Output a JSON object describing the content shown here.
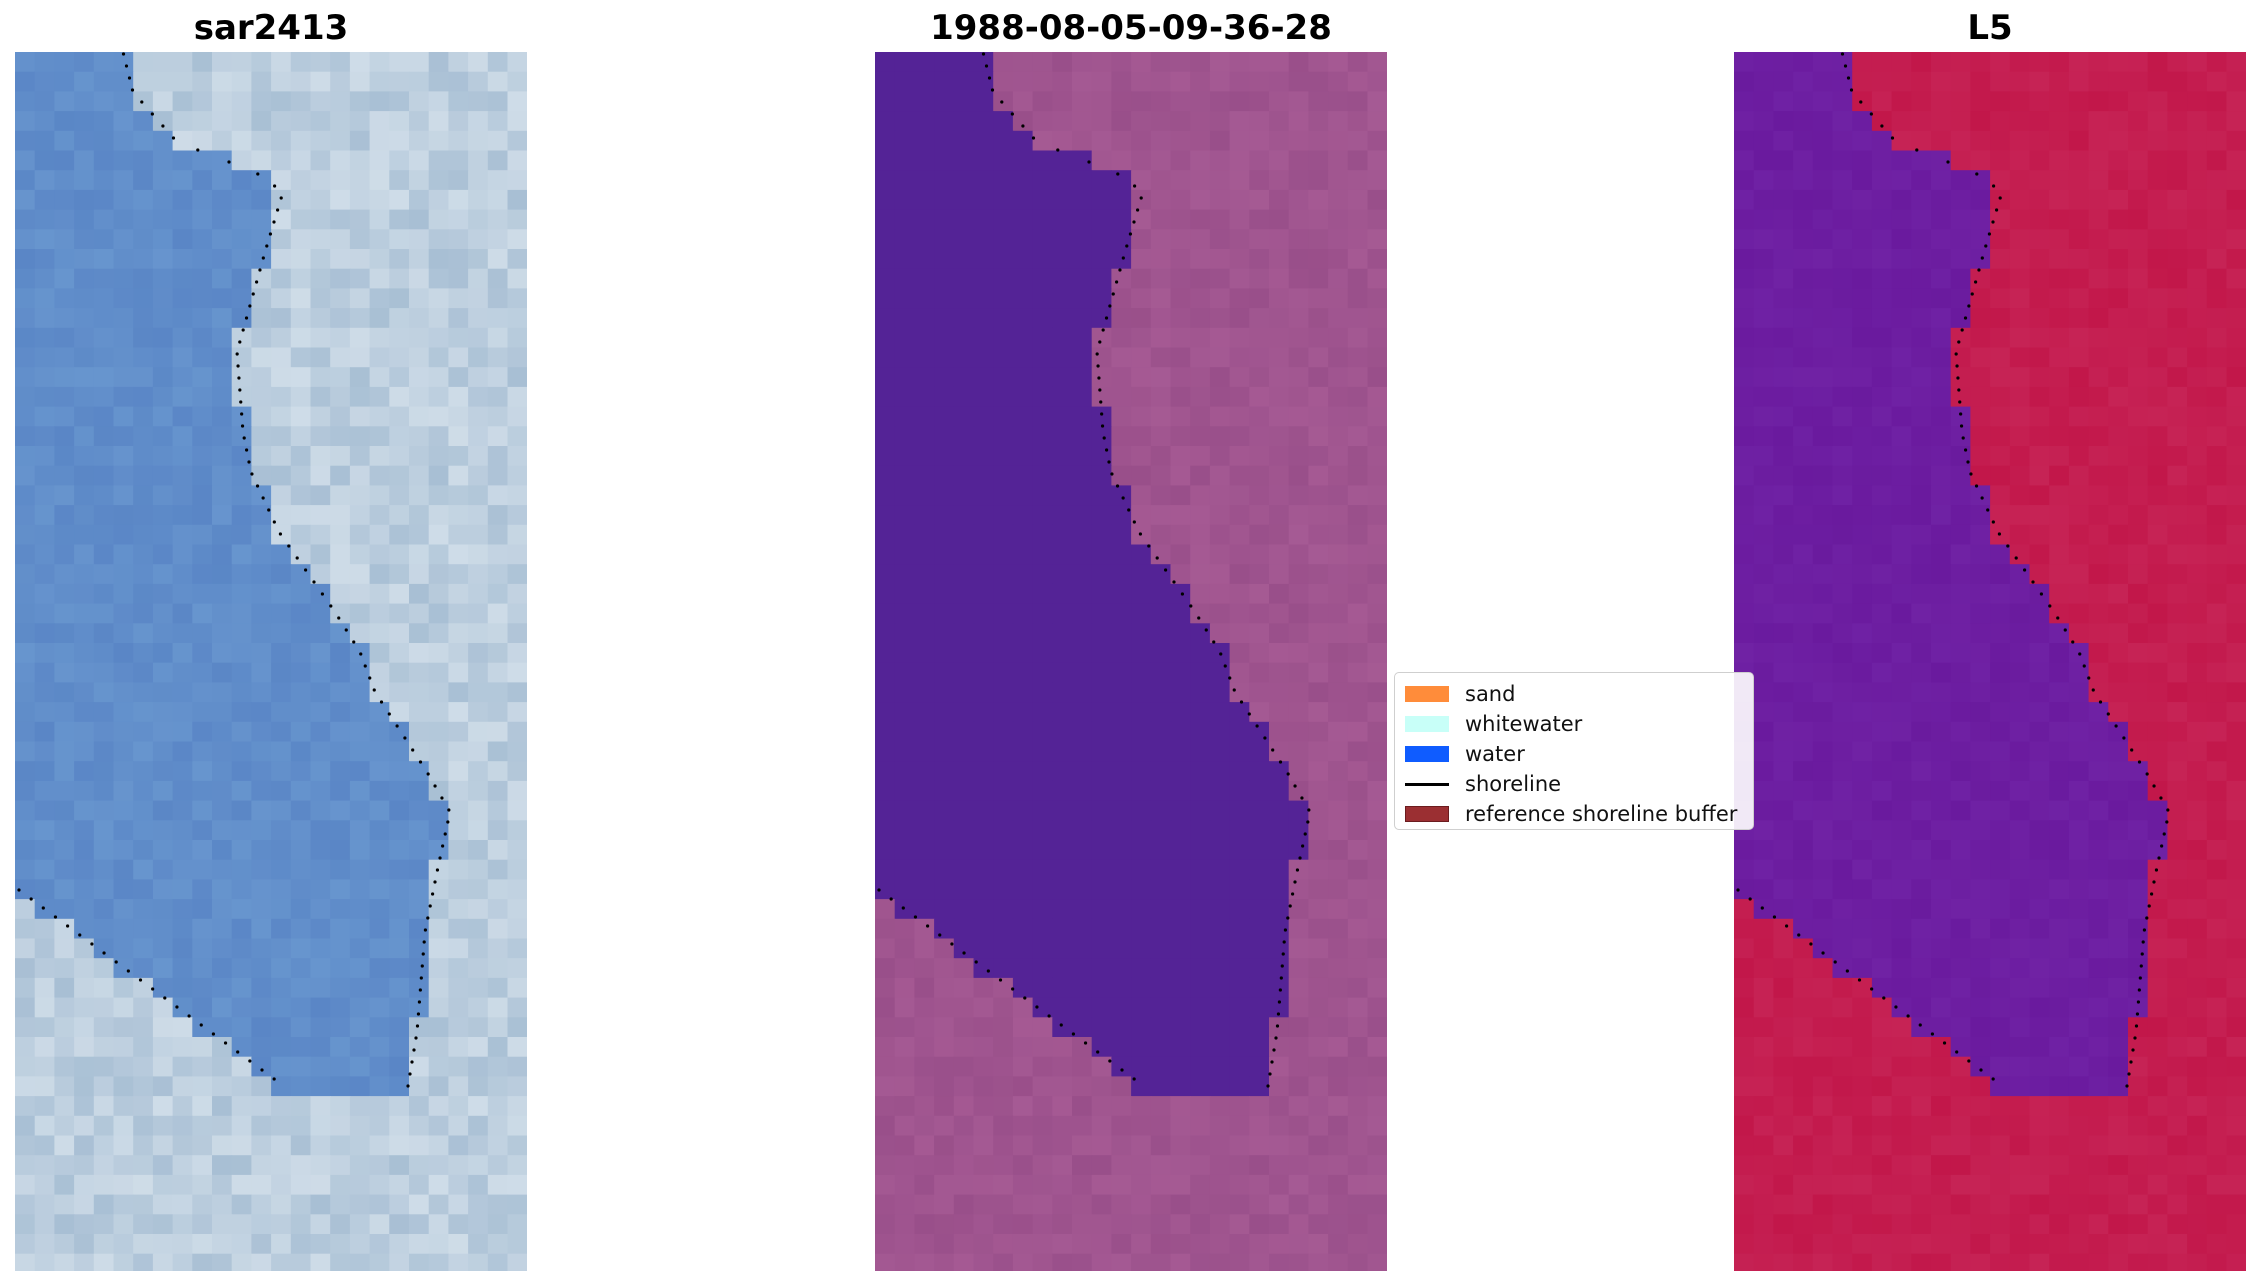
{
  "panels": [
    {
      "title": "sar2413",
      "style": "rgb"
    },
    {
      "title": "1988-08-05-09-36-28",
      "style": "classified"
    },
    {
      "title": "L5",
      "style": "index"
    }
  ],
  "legend": {
    "items": [
      {
        "label": "sand",
        "color": "#ff8c3a",
        "kind": "patch"
      },
      {
        "label": "whitewater",
        "color": "#c8fff8",
        "kind": "patch"
      },
      {
        "label": "water",
        "color": "#0f5cff",
        "kind": "patch"
      },
      {
        "label": "shoreline",
        "color": "#000000",
        "kind": "line"
      },
      {
        "label": "reference shoreline buffer",
        "color": "#9b2f32",
        "kind": "patch"
      }
    ]
  },
  "colors": {
    "water_class": "#542396",
    "land_overlay": "#994f8a",
    "index_water": "#6a1a9e",
    "index_land": "#c2174a",
    "rgb_water": "#5a86c6",
    "rgb_land": "#a8bfd4"
  }
}
